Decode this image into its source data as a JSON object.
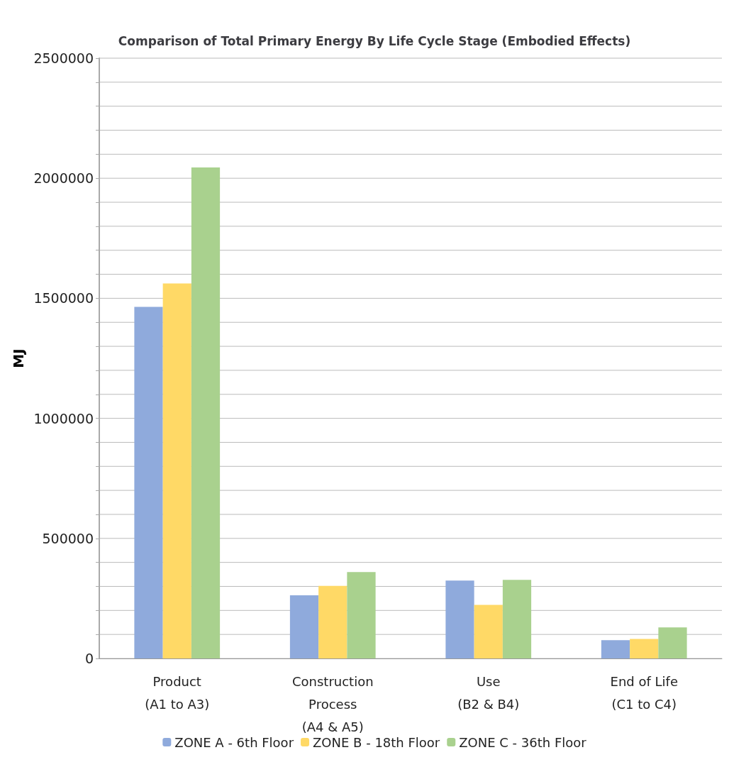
{
  "chart_data": {
    "type": "bar",
    "title": "Comparison of Total Primary Energy By Life Cycle Stage (Embodied Effects)",
    "ylabel": "MJ",
    "categories": [
      "Product\n(A1 to A3)",
      "Construction\nProcess\n(A4 & A5)",
      "Use\n(B2 & B4)",
      "End of Life\n(C1 to C4)"
    ],
    "series": [
      {
        "name": "ZONE A - 6th Floor",
        "color": "#8faadc",
        "values": [
          1464000,
          263000,
          324000,
          76000
        ]
      },
      {
        "name": "ZONE B - 18th Floor",
        "color": "#ffd966",
        "values": [
          1562000,
          302000,
          223000,
          81000
        ]
      },
      {
        "name": "ZONE C - 36th Floor",
        "color": "#a9d18e",
        "values": [
          2045000,
          360000,
          327000,
          129000
        ]
      }
    ],
    "ylim": [
      0,
      2500000
    ],
    "yticks": [
      0,
      {
        "value": 100000,
        "label": null
      },
      {
        "value": 200000,
        "label": null
      },
      {
        "value": 300000,
        "label": null
      },
      {
        "value": 400000,
        "label": null
      },
      500000,
      {
        "value": 600000,
        "label": null
      },
      {
        "value": 700000,
        "label": null
      },
      {
        "value": 800000,
        "label": null
      },
      {
        "value": 900000,
        "label": null
      },
      1000000,
      {
        "value": 1100000,
        "label": null
      },
      {
        "value": 1200000,
        "label": null
      },
      {
        "value": 1300000,
        "label": null
      },
      {
        "value": 1400000,
        "label": null
      },
      1500000,
      {
        "value": 1600000,
        "label": null
      },
      {
        "value": 1700000,
        "label": null
      },
      {
        "value": 1800000,
        "label": null
      },
      {
        "value": 1900000,
        "label": null
      },
      2000000,
      {
        "value": 2100000,
        "label": null
      },
      {
        "value": 2200000,
        "label": null
      },
      {
        "value": 2300000,
        "label": null
      },
      {
        "value": 2400000,
        "label": null
      },
      2500000
    ],
    "grid": "y",
    "legend": "bottom"
  }
}
